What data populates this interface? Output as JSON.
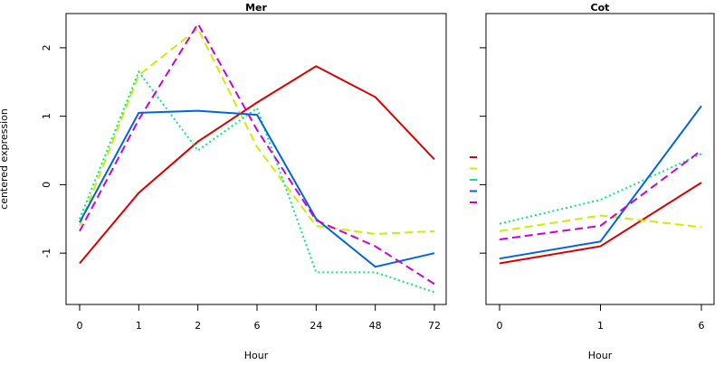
{
  "chart_data": [
    {
      "type": "line",
      "title": "Mer",
      "xlabel": "Hour",
      "ylabel": "centered expression",
      "categories": [
        "0",
        "1",
        "2",
        "6",
        "24",
        "48",
        "72"
      ],
      "yticks": [
        -1,
        0,
        1,
        2
      ],
      "ylim": [
        -1.75,
        2.5
      ],
      "series": [
        {
          "color": "#dd0000",
          "dash": "solid",
          "values": [
            -1.15,
            -0.12,
            0.63,
            1.2,
            1.73,
            1.28,
            0.37
          ]
        },
        {
          "color": "#ccee00",
          "dash": "dashed",
          "values": [
            -0.6,
            1.6,
            2.28,
            0.55,
            -0.6,
            -0.72,
            -0.68
          ]
        },
        {
          "color": "#00ee77",
          "dash": "dotted",
          "values": [
            -0.5,
            1.65,
            0.5,
            1.12,
            -1.28,
            -1.28,
            -1.57
          ]
        },
        {
          "color": "#0066dd",
          "dash": "solid",
          "values": [
            -0.55,
            1.05,
            1.08,
            1.02,
            -0.5,
            -1.2,
            -1.0
          ]
        },
        {
          "color": "#cc00dd",
          "dash": "dashed",
          "values": [
            -0.68,
            0.95,
            2.35,
            0.8,
            -0.52,
            -0.9,
            -1.45
          ]
        }
      ]
    },
    {
      "type": "line",
      "title": "Cot",
      "xlabel": "Hour",
      "ylabel": "",
      "categories": [
        "0",
        "1",
        "6"
      ],
      "yticks": [
        -1,
        0,
        1,
        2
      ],
      "ylim": [
        -1.75,
        2.5
      ],
      "series": [
        {
          "color": "#dd0000",
          "dash": "solid",
          "values": [
            -1.15,
            -0.9,
            0.03
          ]
        },
        {
          "color": "#ccee00",
          "dash": "dashed",
          "values": [
            -0.68,
            -0.45,
            -0.62
          ]
        },
        {
          "color": "#00ee77",
          "dash": "dotted",
          "values": [
            -0.57,
            -0.22,
            0.45
          ]
        },
        {
          "color": "#0066dd",
          "dash": "solid",
          "values": [
            -1.08,
            -0.83,
            1.15
          ]
        },
        {
          "color": "#cc00dd",
          "dash": "dashed",
          "values": [
            -0.8,
            -0.6,
            0.5
          ]
        }
      ]
    }
  ]
}
